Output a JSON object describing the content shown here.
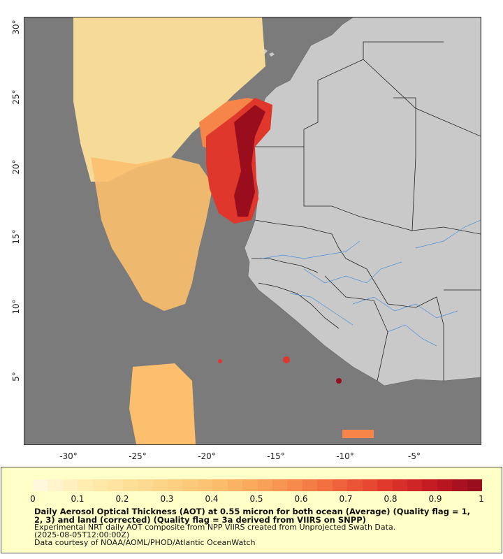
{
  "map": {
    "lat_ticks": [
      "30°",
      "25°",
      "20°",
      "15°",
      "10°",
      "5°"
    ],
    "lon_ticks": [
      "-30°",
      "-25°",
      "-20°",
      "-15°",
      "-10°",
      "-5°"
    ],
    "colors": {
      "ocean": "#7b7b7b",
      "land": "#c9c9c9",
      "border": "#222222",
      "river": "#4a90d9"
    }
  },
  "legend": {
    "ticks": [
      "0",
      "0.1",
      "0.2",
      "0.3",
      "0.4",
      "0.5",
      "0.6",
      "0.7",
      "0.8",
      "0.9",
      "1"
    ],
    "colors": [
      "#fff8dc",
      "#ffedb0",
      "#fde09a",
      "#fcd184",
      "#fbbf6e",
      "#f9a65a",
      "#f6854a",
      "#ee5f3a",
      "#e0372c",
      "#c41a23",
      "#9a0d1d"
    ],
    "title": "Daily Aerosol Optical Thickness (AOT) at 0.55 micron for both ocean (Average) (Quality flag = 1, 2, 3) and land (corrected) (Quality flag = 3a derived from VIIRS on SNPP)",
    "subtitle": "Experimental NRT daily AOT composite from NPP VIIRS created from Unprojected Swath Data.",
    "date": "(2025-08-05T12:00:00Z)",
    "credit": "Data courtesy of NOAA/AOML/PHOD/Atlantic OceanWatch"
  }
}
